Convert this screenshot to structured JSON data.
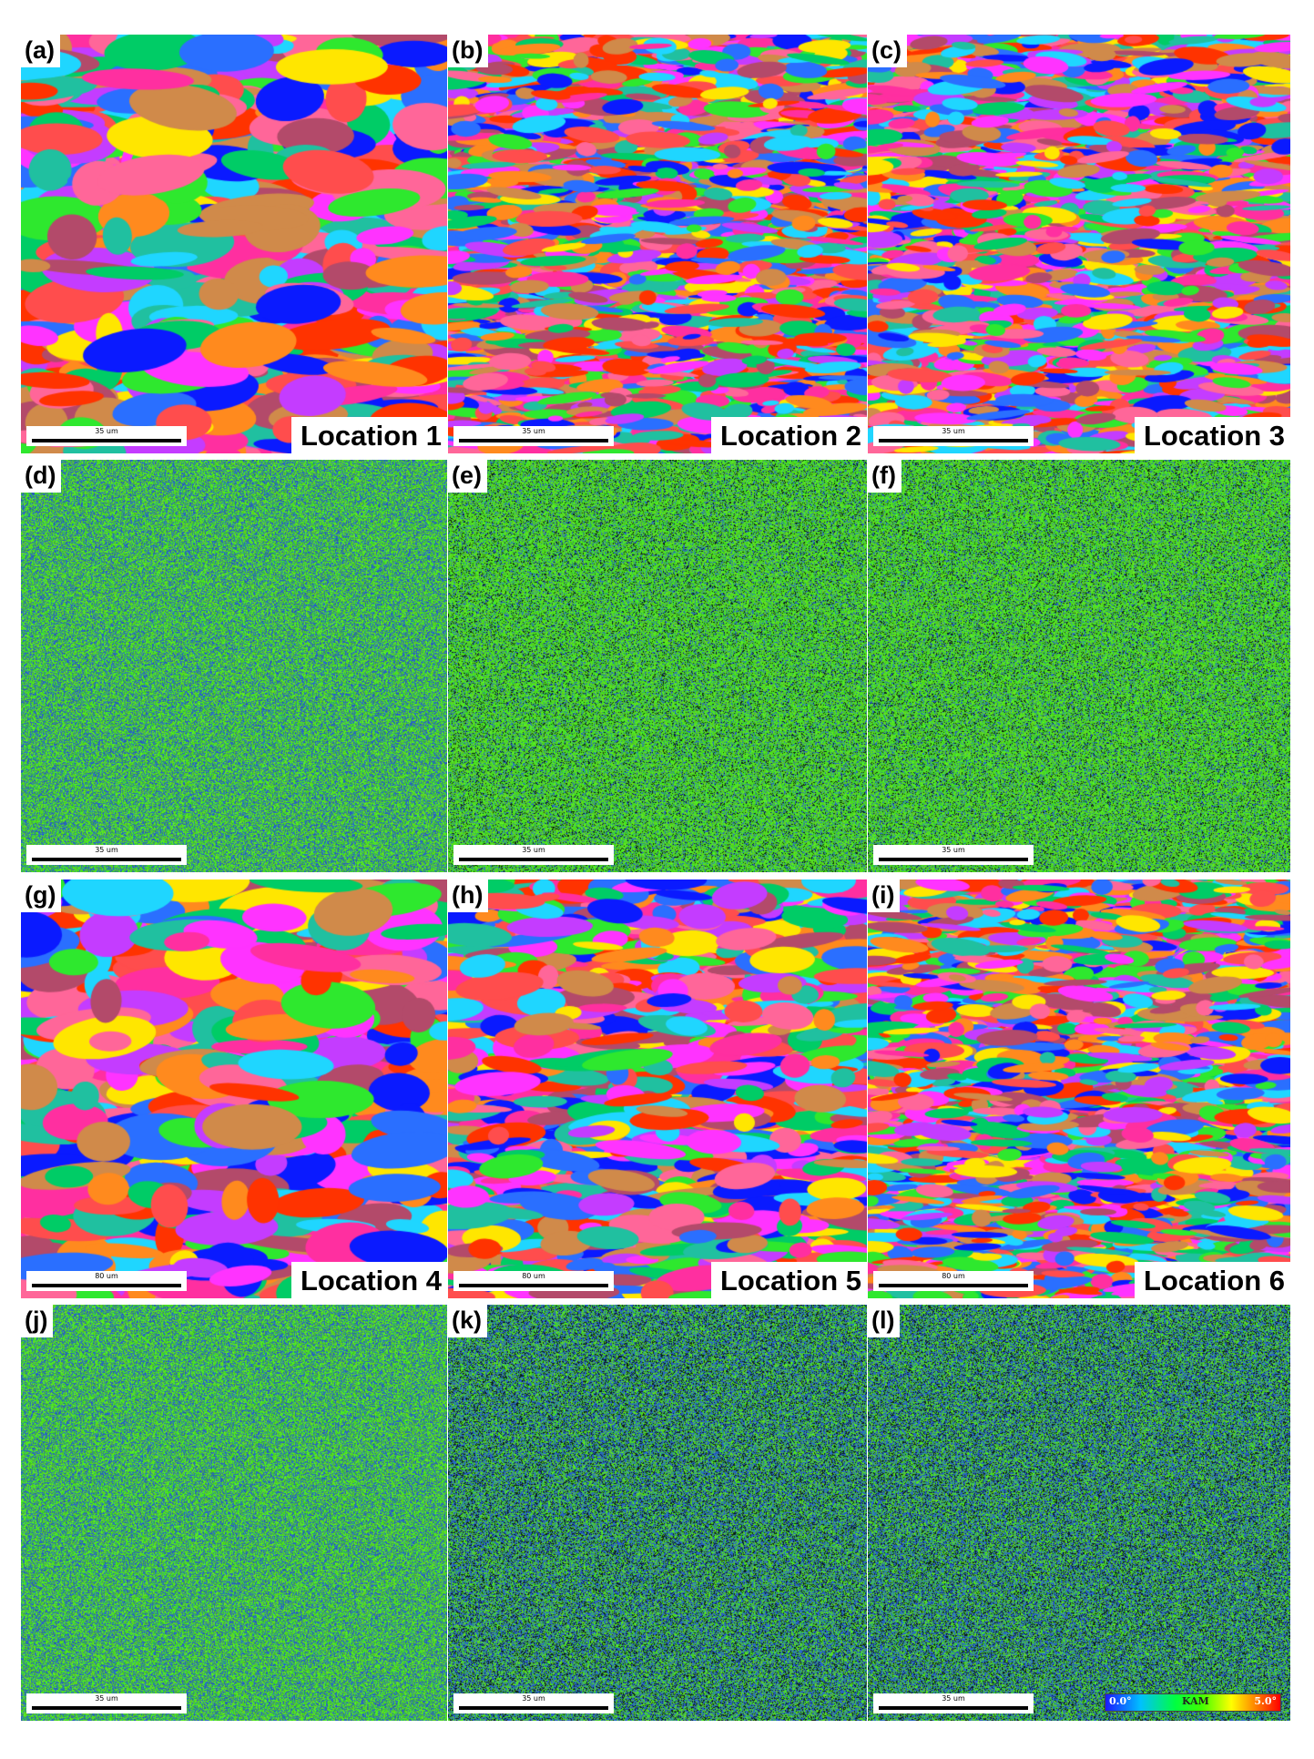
{
  "panels": [
    {
      "id": "a",
      "label": "(a)",
      "kind": "ipf",
      "location": "Location 1",
      "scale": "35 um",
      "grain": "coarse"
    },
    {
      "id": "b",
      "label": "(b)",
      "kind": "ipf",
      "location": "Location 2",
      "scale": "35 um",
      "grain": "fine"
    },
    {
      "id": "c",
      "label": "(c)",
      "kind": "ipf",
      "location": "Location 3",
      "scale": "35 um",
      "grain": "fine"
    },
    {
      "id": "d",
      "label": "(d)",
      "kind": "kam",
      "scale": "35 um",
      "tone": "blueish"
    },
    {
      "id": "e",
      "label": "(e)",
      "kind": "kam",
      "scale": "35 um",
      "tone": "greenish"
    },
    {
      "id": "f",
      "label": "(f)",
      "kind": "kam",
      "scale": "35 um",
      "tone": "greenish"
    },
    {
      "id": "g",
      "label": "(g)",
      "kind": "ipf",
      "location": "Location 4",
      "scale": "80 um",
      "grain": "coarse"
    },
    {
      "id": "h",
      "label": "(h)",
      "kind": "ipf",
      "location": "Location 5",
      "scale": "80 um",
      "grain": "medium"
    },
    {
      "id": "i",
      "label": "(i)",
      "kind": "ipf",
      "location": "Location 6",
      "scale": "80 um",
      "grain": "fine"
    },
    {
      "id": "j",
      "label": "(j)",
      "kind": "kam",
      "scale": "35 um",
      "tone": "blueish"
    },
    {
      "id": "k",
      "label": "(k)",
      "kind": "kam",
      "scale": "35 um",
      "tone": "dark"
    },
    {
      "id": "l",
      "label": "(l)",
      "kind": "kam",
      "scale": "35 um",
      "tone": "dark"
    }
  ],
  "legend": {
    "min": "0.0°",
    "name": "KAM",
    "max": "5.0°"
  },
  "colors": {
    "ipf_palette": [
      "#ff2fa0",
      "#ff4d4d",
      "#ff8a1e",
      "#ffe600",
      "#2ee82e",
      "#1fd6ff",
      "#2a6fff",
      "#0a1aff",
      "#c43cff",
      "#ff33ff",
      "#d08a4a",
      "#b34a6a",
      "#20c0a0",
      "#ff6699",
      "#00cc66",
      "#ff3300"
    ],
    "kam_green": "#3cdc2a",
    "kam_blue": "#2a4fb0"
  }
}
